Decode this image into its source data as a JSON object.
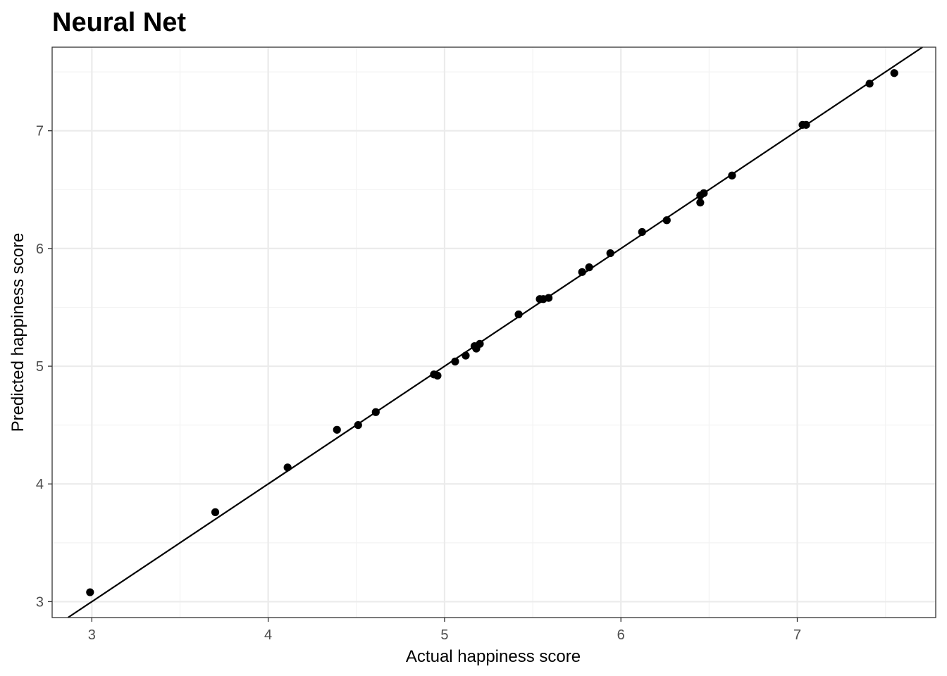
{
  "chart_data": {
    "type": "scatter",
    "title": "Neural Net",
    "xlabel": "Actual happiness score",
    "ylabel": "Predicted happiness score",
    "xlim": [
      2.775,
      7.785
    ],
    "ylim": [
      2.865,
      7.71
    ],
    "x_ticks": [
      3,
      4,
      5,
      6,
      7
    ],
    "y_ticks": [
      3,
      4,
      5,
      6,
      7
    ],
    "x_tick_labels": [
      "3",
      "4",
      "5",
      "6",
      "7"
    ],
    "y_tick_labels": [
      "3",
      "4",
      "5",
      "6",
      "7"
    ],
    "grid": true,
    "reference_line": {
      "slope": 1,
      "intercept": 0
    },
    "points": [
      {
        "x": 2.99,
        "y": 3.08
      },
      {
        "x": 3.7,
        "y": 3.76
      },
      {
        "x": 4.11,
        "y": 4.14
      },
      {
        "x": 4.39,
        "y": 4.46
      },
      {
        "x": 4.51,
        "y": 4.5
      },
      {
        "x": 4.61,
        "y": 4.61
      },
      {
        "x": 4.94,
        "y": 4.93
      },
      {
        "x": 4.96,
        "y": 4.92
      },
      {
        "x": 5.06,
        "y": 5.04
      },
      {
        "x": 5.12,
        "y": 5.09
      },
      {
        "x": 5.17,
        "y": 5.17
      },
      {
        "x": 5.18,
        "y": 5.15
      },
      {
        "x": 5.2,
        "y": 5.19
      },
      {
        "x": 5.42,
        "y": 5.44
      },
      {
        "x": 5.54,
        "y": 5.57
      },
      {
        "x": 5.56,
        "y": 5.57
      },
      {
        "x": 5.59,
        "y": 5.58
      },
      {
        "x": 5.78,
        "y": 5.8
      },
      {
        "x": 5.82,
        "y": 5.84
      },
      {
        "x": 5.94,
        "y": 5.96
      },
      {
        "x": 6.12,
        "y": 6.14
      },
      {
        "x": 6.26,
        "y": 6.24
      },
      {
        "x": 6.45,
        "y": 6.45
      },
      {
        "x": 6.45,
        "y": 6.39
      },
      {
        "x": 6.47,
        "y": 6.47
      },
      {
        "x": 6.63,
        "y": 6.62
      },
      {
        "x": 7.03,
        "y": 7.05
      },
      {
        "x": 7.05,
        "y": 7.05
      },
      {
        "x": 7.41,
        "y": 7.4
      },
      {
        "x": 7.55,
        "y": 7.49
      }
    ],
    "colors": {
      "point": "#000000",
      "line": "#000000",
      "grid_major": "#ebebeb",
      "grid_minor": "#f3f3f3",
      "panel_border": "#333333",
      "background": "#ffffff"
    }
  }
}
